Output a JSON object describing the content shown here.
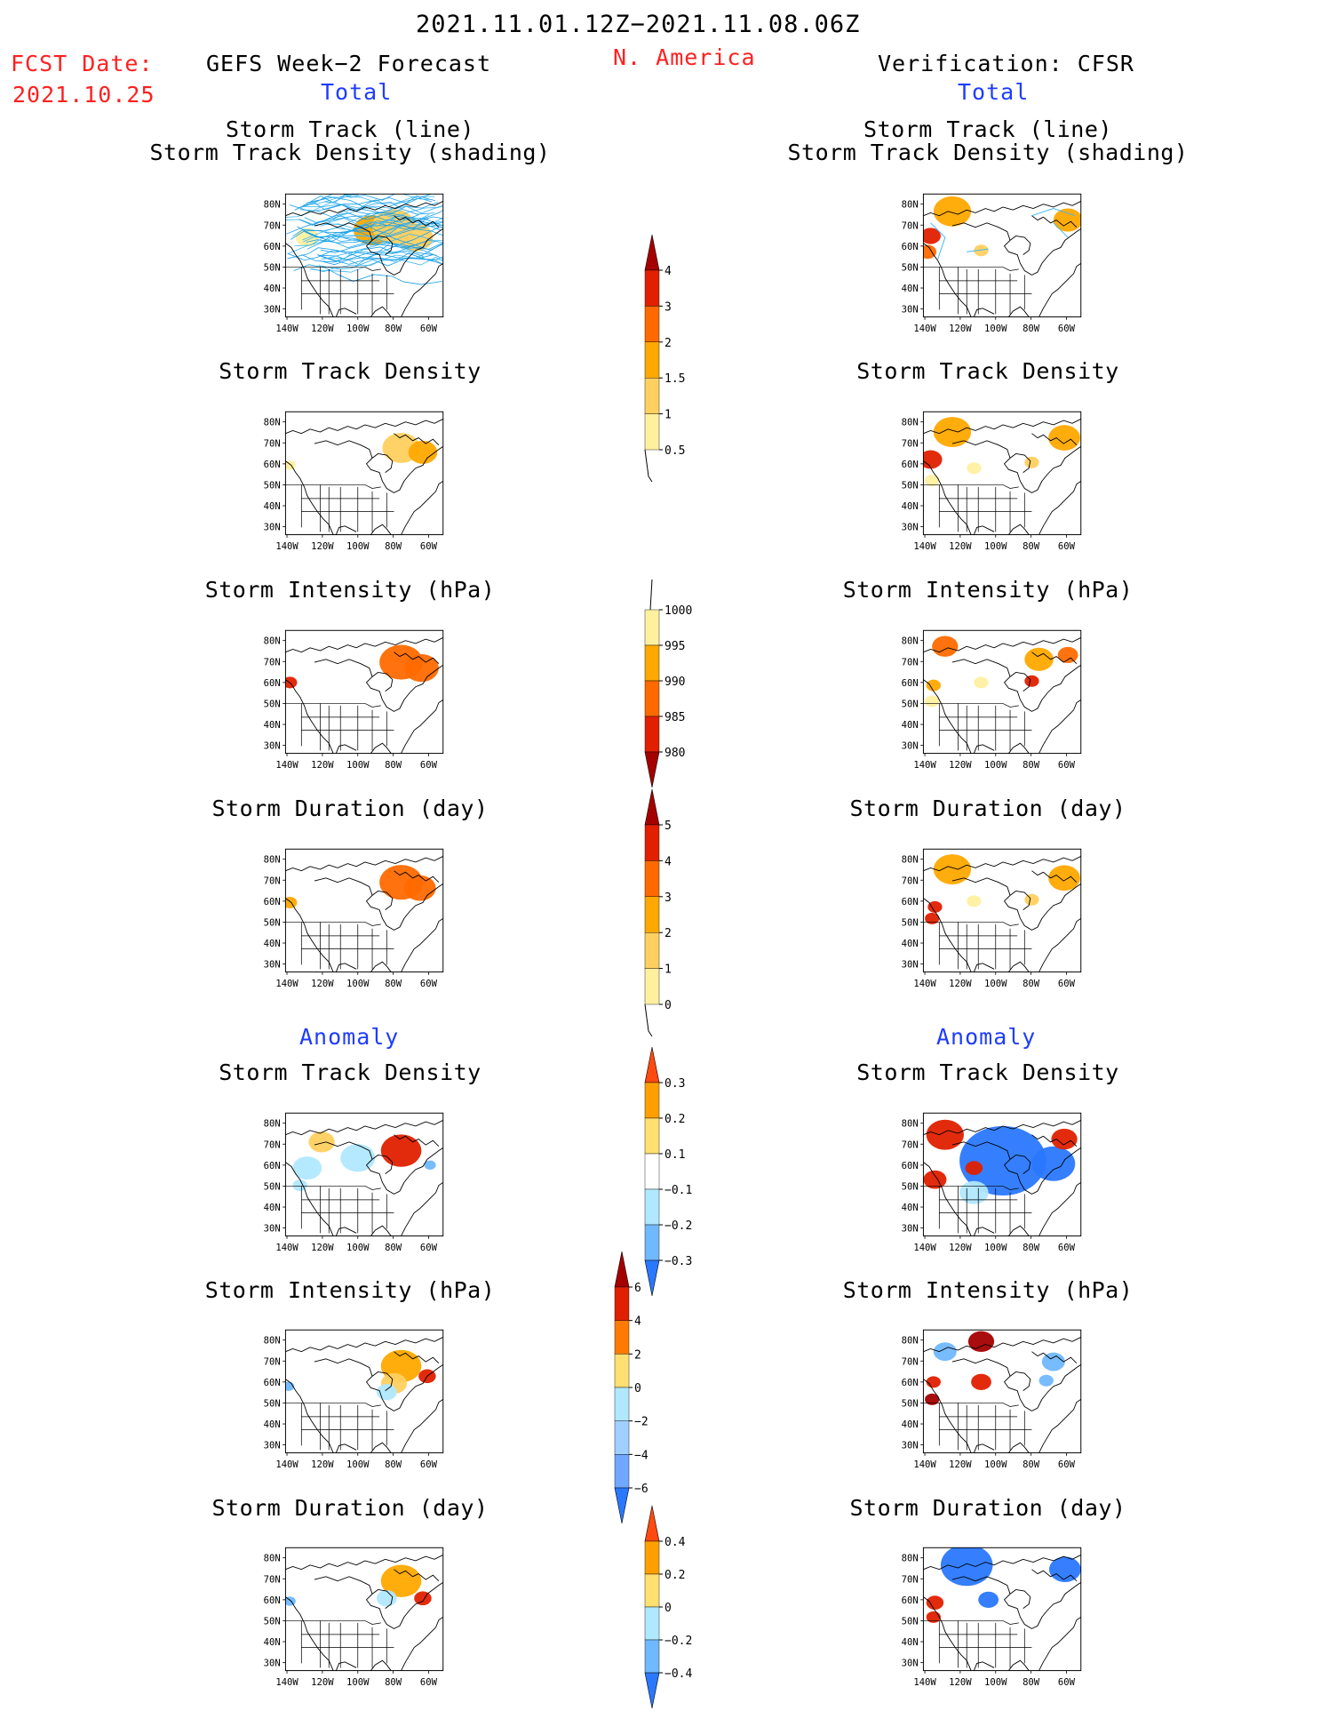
{
  "header": {
    "period": "2021.11.01.12Z−2021.11.08.06Z",
    "fcst_label": "FCST Date:",
    "fcst_date": "2021.10.25",
    "left_title": "GEFS Week−2 Forecast",
    "region": "N. America",
    "right_title": "Verification: CFSR",
    "total_left": "Total",
    "total_right": "Total",
    "anomaly_left": "Anomaly",
    "anomaly_right": "Anomaly"
  },
  "axes": {
    "lat_labels": [
      "80N",
      "70N",
      "60N",
      "50N",
      "40N",
      "30N"
    ],
    "lon_labels": [
      "140W",
      "120W",
      "100W",
      "80W",
      "60W"
    ]
  },
  "panels": {
    "total_track": {
      "title1": "Storm Track (line)",
      "title2": "Storm Track Density (shading)"
    },
    "total_density": {
      "title": "Storm Track Density"
    },
    "total_intensity": {
      "title": "Storm Intensity (hPa)"
    },
    "total_duration": {
      "title": "Storm Duration (day)"
    },
    "anom_density": {
      "title": "Storm Track Density"
    },
    "anom_intensity": {
      "title": "Storm Intensity (hPa)"
    },
    "anom_duration": {
      "title": "Storm Duration (day)"
    }
  },
  "colorbars": {
    "density_total": {
      "labels": [
        "4",
        "3",
        "2",
        "1.5",
        "1",
        "0.5"
      ],
      "colors": [
        "#a50000",
        "#e02000",
        "#ff6a00",
        "#ffa800",
        "#ffd060",
        "#fff0a0"
      ]
    },
    "intensity_total": {
      "labels": [
        "1000",
        "995",
        "990",
        "985",
        "980"
      ],
      "colors": [
        "#fff0a0",
        "#ffa800",
        "#ff6a00",
        "#e02000",
        "#a50000"
      ]
    },
    "duration_total": {
      "labels": [
        "5",
        "4",
        "3",
        "2",
        "1",
        "0"
      ],
      "colors": [
        "#a50000",
        "#e02000",
        "#ff6a00",
        "#ffa800",
        "#ffd060",
        "#fff0a0"
      ]
    },
    "density_anom": {
      "labels": [
        "0.3",
        "0.2",
        "0.1",
        "−0.1",
        "−0.2",
        "−0.3"
      ],
      "colors": [
        "#ff4a10",
        "#ffa000",
        "#ffe070",
        "#ffffff",
        "#b0e8ff",
        "#70b8ff",
        "#2a78ff"
      ]
    },
    "intensity_anom": {
      "labels": [
        "6",
        "4",
        "2",
        "0",
        "−2",
        "−4",
        "−6"
      ],
      "colors": [
        "#a50000",
        "#e02000",
        "#ff7a00",
        "#ffe070",
        "#b0e8ff",
        "#a0d0ff",
        "#70a8ff",
        "#2a78ff"
      ]
    },
    "duration_anom": {
      "labels": [
        "0.4",
        "0.2",
        "0",
        "−0.2",
        "−0.4"
      ],
      "colors": [
        "#ff4a10",
        "#ffa000",
        "#ffe070",
        "#b0e8ff",
        "#70b8ff",
        "#2a78ff"
      ]
    }
  }
}
